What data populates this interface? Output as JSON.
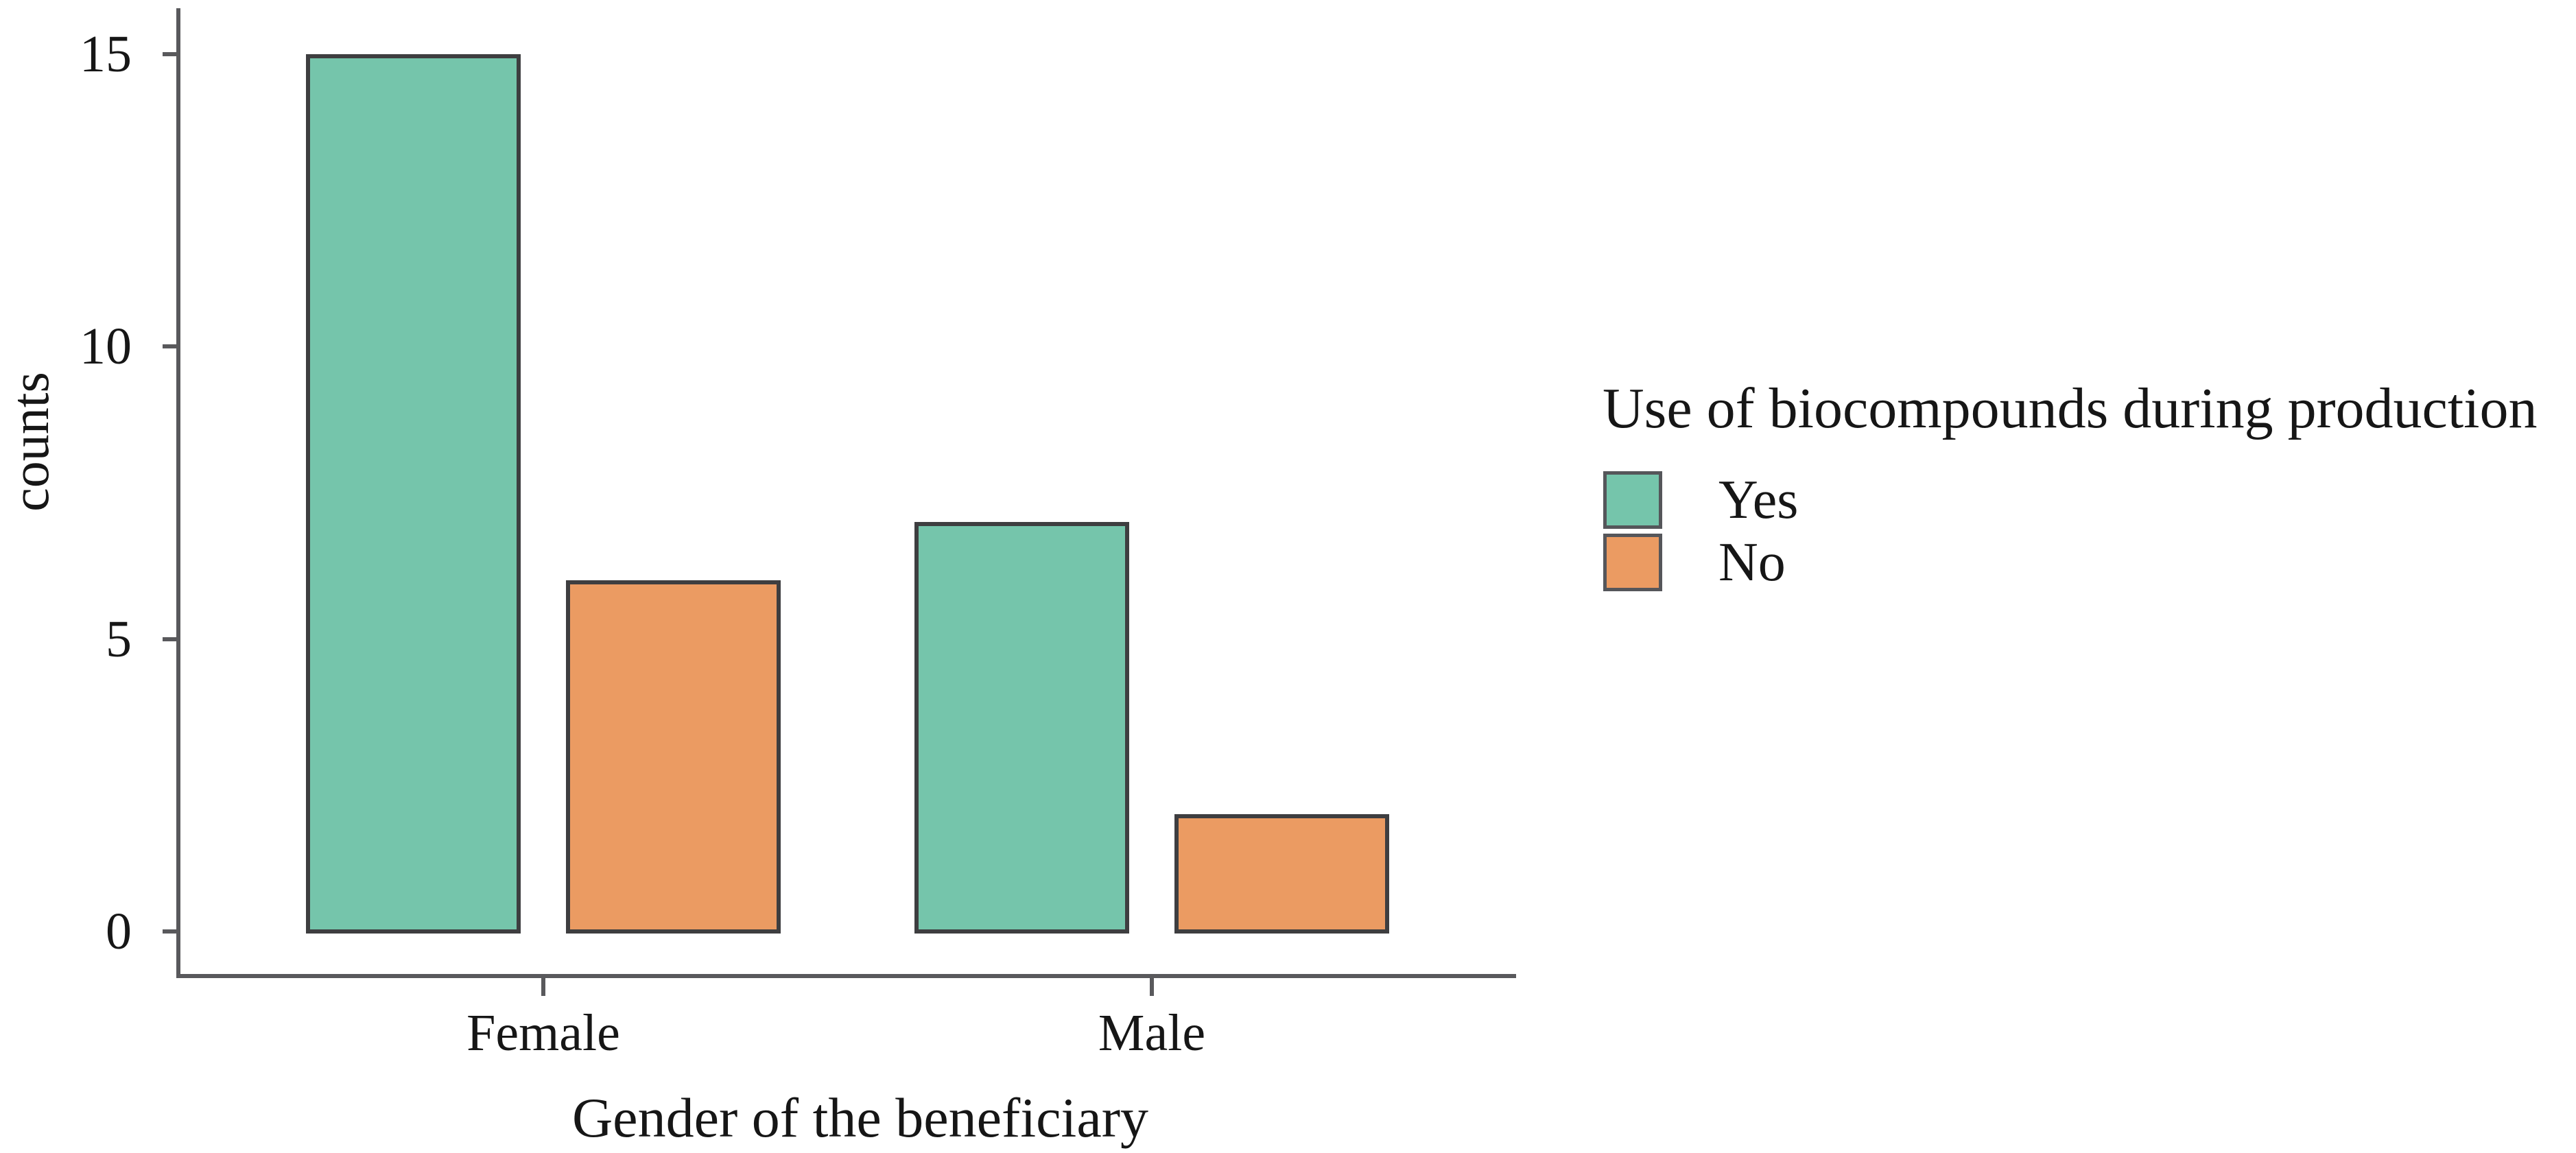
{
  "figure": {
    "background": "#ffffff",
    "text_color": "#161616",
    "axis_color": "#59595c",
    "bar_border_color": "#3e3e40"
  },
  "chart_data": {
    "type": "bar",
    "categories": [
      "Female",
      "Male"
    ],
    "series": [
      {
        "name": "Yes",
        "color": "#75c5ab",
        "values": [
          15,
          7
        ]
      },
      {
        "name": "No",
        "color": "#eb9b62",
        "values": [
          6,
          2
        ]
      }
    ],
    "title": "",
    "xlabel": "Gender of the beneficiary",
    "ylabel": "counts",
    "yticks": [
      0,
      5,
      10,
      15
    ],
    "ylim": [
      0,
      15.75
    ],
    "grid": false,
    "legend": {
      "title": "Use of biocompounds during production",
      "entries": [
        "Yes",
        "No"
      ],
      "position": "right"
    }
  }
}
